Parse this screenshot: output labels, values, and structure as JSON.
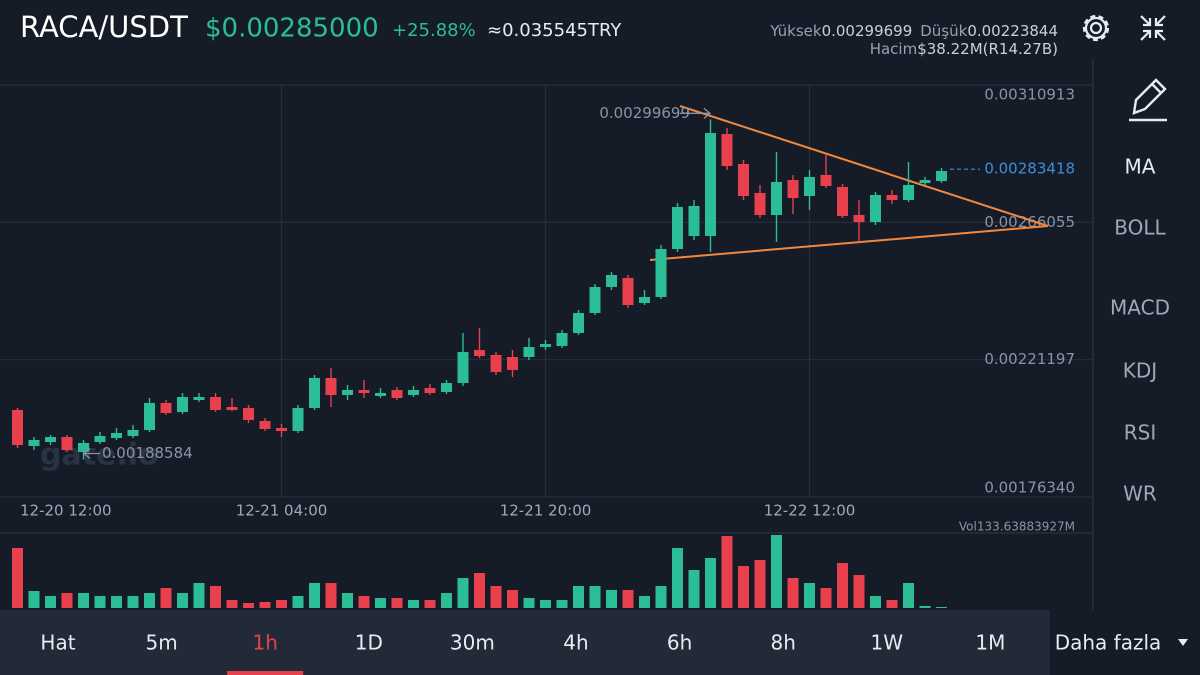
{
  "header": {
    "pair": "RACA/USDT",
    "price": "$0.00285000",
    "change": "+25.88%",
    "local_price": "≈0.035545TRY",
    "high_label": "Yüksek",
    "high": "0.00299699",
    "low_label": "Düşük",
    "low": "0.00223844",
    "volume_label": "Hacim",
    "volume": "$38.22M(R14.27B)"
  },
  "chart_data": {
    "type": "candlestick",
    "up_color": "#2bbd96",
    "down_color": "#e8414d",
    "categories": [
      "12-20 12:00",
      null,
      null,
      null,
      null,
      null,
      null,
      null,
      null,
      null,
      null,
      null,
      null,
      null,
      null,
      null,
      "12-21 04:00",
      null,
      null,
      null,
      null,
      null,
      null,
      null,
      null,
      null,
      null,
      null,
      null,
      null,
      null,
      null,
      "12-21 20:00",
      null,
      null,
      null,
      null,
      null,
      null,
      null,
      null,
      null,
      null,
      null,
      null,
      null,
      null,
      null,
      "12-22 12:00",
      null,
      null,
      null,
      null,
      null,
      null,
      null,
      null
    ],
    "open": [
      0.00204759,
      0.00193,
      0.00194307,
      0.0019594,
      0.0019104,
      0.00194307,
      0.00195613,
      0.00196266,
      0.00198226,
      0.00207045,
      0.00204105,
      0.00208025,
      0.00209005,
      0.00205739,
      0.00205412,
      0.00201166,
      0.00198879,
      0.00197899,
      0.00205412,
      0.00215211,
      0.00209658,
      0.00211291,
      0.00209332,
      0.00211291,
      0.00209658,
      0.00211945,
      0.00210638,
      0.00213578,
      0.00224356,
      0.00222723,
      0.0022207,
      0.0022207,
      0.00225336,
      0.00225663,
      0.00229909,
      0.00236442,
      0.00244934,
      0.00247874,
      0.00239708,
      0.00241668,
      0.00257346,
      0.00261592,
      0.00261592,
      0.00294909,
      0.0028511,
      0.00275637,
      0.00268452,
      0.00279884,
      0.00274658,
      0.00281517,
      0.00277597,
      0.00268452,
      0.00266165,
      0.00274984,
      0.00273351,
      0.00278904,
      0.00279557
    ],
    "high": [
      0.00205412,
      0.0019594,
      0.00196593,
      0.00196593,
      0.0019496,
      0.00197573,
      0.00198879,
      0.00199859,
      0.00208678,
      0.00208025,
      0.00210311,
      0.00210311,
      0.00210311,
      0.00208678,
      0.00206392,
      0.00202146,
      0.00200186,
      0.00206392,
      0.00216191,
      0.00218477,
      0.00212924,
      0.00214558,
      0.00211945,
      0.00212271,
      0.00212598,
      0.00213251,
      0.00214558,
      0.00229909,
      0.00231542,
      0.00223703,
      0.00224356,
      0.00228276,
      0.00227623,
      0.00230889,
      0.00237422,
      0.00245914,
      0.00249834,
      0.00248854,
      0.00243954,
      0.00258653,
      0.00272371,
      0.00273351,
      0.00299699,
      0.00296868,
      0.00286416,
      0.0027825,
      0.00289029,
      0.00281517,
      0.0028315,
      0.00288049,
      0.00278577,
      0.00273351,
      0.00275964,
      0.00276617,
      0.00285763,
      0.00280863,
      0.00283803
    ],
    "low": [
      0.00192347,
      0.00191693,
      0.00193327,
      0.0019104,
      0.00188584,
      0.00193653,
      0.0019496,
      0.00195613,
      0.00197573,
      0.00203126,
      0.00203452,
      0.00207372,
      0.00204105,
      0.00204432,
      0.00200513,
      0.00197899,
      0.0019594,
      0.00197246,
      0.00204759,
      0.00205739,
      0.00208025,
      0.00208678,
      0.00208678,
      0.00208025,
      0.00209005,
      0.00209658,
      0.00209985,
      0.00212598,
      0.00221743,
      0.00216191,
      0.00215537,
      0.0022109,
      0.00224356,
      0.0022501,
      0.00229256,
      0.00235789,
      0.00243954,
      0.00238075,
      0.00239055,
      0.00241015,
      0.00256366,
      0.00260286,
      0.00256366,
      0.0028315,
      0.00273351,
      0.00267472,
      0.00259633,
      0.00268778,
      0.00270085,
      0.00277271,
      0.00267472,
      0.00259633,
      0.00265185,
      0.00272044,
      0.00272698,
      0.0027825,
      0.00278904
    ],
    "close": [
      0.00193327,
      0.0019496,
      0.0019594,
      0.00191693,
      0.0019398,
      0.00196266,
      0.00197246,
      0.00198226,
      0.00207045,
      0.00203779,
      0.00209005,
      0.00209005,
      0.00204759,
      0.00204759,
      0.00201492,
      0.00198553,
      0.00197899,
      0.00205412,
      0.00215211,
      0.00209658,
      0.00211291,
      0.00210311,
      0.00210311,
      0.00208678,
      0.00211291,
      0.00210311,
      0.00213578,
      0.00223703,
      0.00222397,
      0.00217171,
      0.00217824,
      0.00225336,
      0.00226316,
      0.00229909,
      0.00236442,
      0.00244934,
      0.00248854,
      0.00239055,
      0.00241668,
      0.00257346,
      0.00271065,
      0.00271391,
      0.00295235,
      0.00284456,
      0.00274658,
      0.00268452,
      0.0027923,
      0.00274004,
      0.00280863,
      0.00277924,
      0.00268125,
      0.00266165,
      0.00274984,
      0.00273351,
      0.0027825,
      0.00279884,
      0.00282823
    ],
    "volume": [
      60,
      17,
      12,
      15,
      15,
      12,
      12,
      12,
      15,
      20,
      15,
      25,
      22,
      8,
      5,
      6,
      8,
      12,
      25,
      25,
      15,
      12,
      10,
      10,
      8,
      8,
      15,
      30,
      35,
      22,
      18,
      10,
      8,
      8,
      22,
      22,
      18,
      18,
      12,
      22,
      60,
      38,
      50,
      72,
      42,
      48,
      73,
      30,
      25,
      20,
      45,
      33,
      12,
      8,
      25,
      2,
      1
    ],
    "ylim": [
      0.0017634,
      0.00310913
    ],
    "yticks": [
      0.00310913,
      0.00266055,
      0.00221197,
      {
        "value": 0.0017634,
        "label": "0.00176340"
      }
    ],
    "max_label": 0.00299699,
    "min_label": 0.00188584,
    "last_price": 0.00283418,
    "volume_text": "Vol133.63883927M",
    "watermark": "gate.io"
  },
  "indicators": [
    "MA",
    "BOLL",
    "MACD",
    "KDJ",
    "RSI",
    "WR"
  ],
  "active_indicator": 0,
  "timeframes": [
    "Hat",
    "5m",
    "1h",
    "1D",
    "30m",
    "4h",
    "6h",
    "8h",
    "1W",
    "1M"
  ],
  "active_timeframe": 2,
  "more": "Daha fazla"
}
